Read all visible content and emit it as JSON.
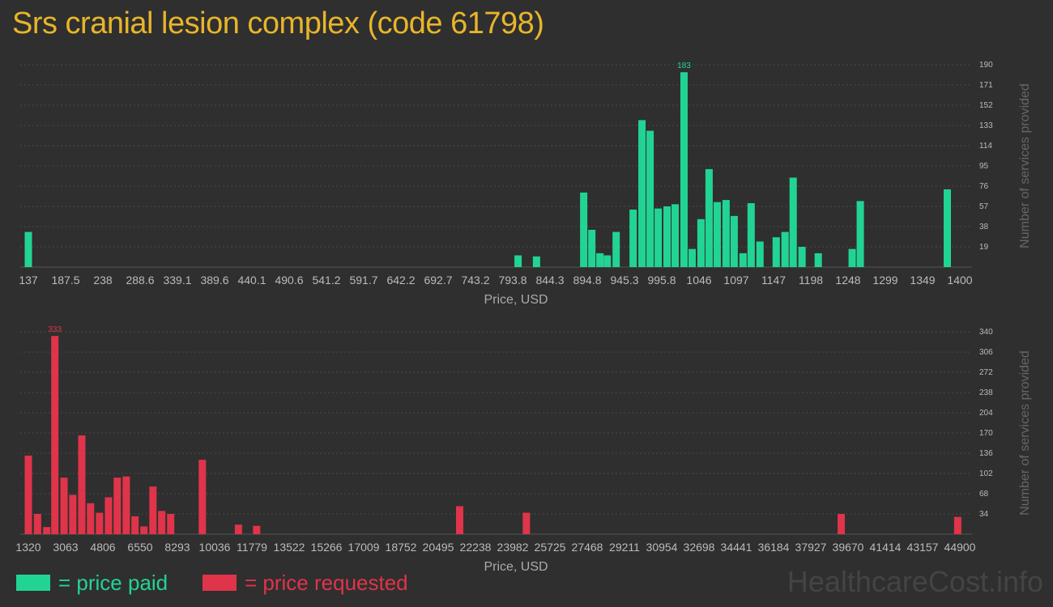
{
  "title": "Srs cranial lesion complex (code 61798)",
  "colors": {
    "paid": "#22d494",
    "requested": "#e0344a",
    "title": "#e8b52a",
    "axis_text": "#bbbbbb",
    "grid": "#4a4a4a"
  },
  "legend": {
    "paid": "= price paid",
    "requested": "= price requested"
  },
  "watermark": "HealthcareCost.info",
  "chart_data": [
    {
      "type": "bar",
      "series_key": "paid",
      "xlabel": "Price, USD",
      "ylabel": "Number of services provided",
      "x_ticks": [
        "137",
        "187.5",
        "238",
        "288.6",
        "339.1",
        "389.6",
        "440.1",
        "490.6",
        "541.2",
        "591.7",
        "642.2",
        "692.7",
        "743.2",
        "793.8",
        "844.3",
        "894.8",
        "945.3",
        "995.8",
        "1046",
        "1097",
        "1147",
        "1198",
        "1248",
        "1299",
        "1349",
        "1400"
      ],
      "xlim": [
        137,
        1400
      ],
      "y_ticks": [
        "19",
        "38",
        "57",
        "76",
        "95",
        "114",
        "133",
        "152",
        "171",
        "190"
      ],
      "ylim": [
        0,
        190
      ],
      "max_label": "183",
      "max_label_x": 1046,
      "bars": [
        {
          "x": 137,
          "y": 33
        },
        {
          "x": 801,
          "y": 11
        },
        {
          "x": 826,
          "y": 10
        },
        {
          "x": 890,
          "y": 70
        },
        {
          "x": 901,
          "y": 35
        },
        {
          "x": 912,
          "y": 13
        },
        {
          "x": 922,
          "y": 11
        },
        {
          "x": 934,
          "y": 33
        },
        {
          "x": 957,
          "y": 54
        },
        {
          "x": 969,
          "y": 138
        },
        {
          "x": 980,
          "y": 128
        },
        {
          "x": 991,
          "y": 55
        },
        {
          "x": 1003,
          "y": 57
        },
        {
          "x": 1014,
          "y": 59
        },
        {
          "x": 1026,
          "y": 183
        },
        {
          "x": 1037,
          "y": 17
        },
        {
          "x": 1049,
          "y": 45
        },
        {
          "x": 1060,
          "y": 92
        },
        {
          "x": 1071,
          "y": 61
        },
        {
          "x": 1083,
          "y": 63
        },
        {
          "x": 1094,
          "y": 48
        },
        {
          "x": 1106,
          "y": 13
        },
        {
          "x": 1117,
          "y": 60
        },
        {
          "x": 1129,
          "y": 24
        },
        {
          "x": 1151,
          "y": 28
        },
        {
          "x": 1163,
          "y": 33
        },
        {
          "x": 1174,
          "y": 84
        },
        {
          "x": 1186,
          "y": 19
        },
        {
          "x": 1208,
          "y": 13
        },
        {
          "x": 1254,
          "y": 17
        },
        {
          "x": 1265,
          "y": 62
        },
        {
          "x": 1383,
          "y": 73
        }
      ]
    },
    {
      "type": "bar",
      "series_key": "requested",
      "xlabel": "Price, USD",
      "ylabel": "Number of services provided",
      "x_ticks": [
        "1320",
        "3063",
        "4806",
        "6550",
        "8293",
        "10036",
        "11779",
        "13522",
        "15266",
        "17009",
        "18752",
        "20495",
        "22238",
        "23982",
        "25725",
        "27468",
        "29211",
        "30954",
        "32698",
        "34441",
        "36184",
        "37927",
        "39670",
        "41414",
        "43157",
        "44900"
      ],
      "xlim": [
        1320,
        44900
      ],
      "y_ticks": [
        "34",
        "68",
        "102",
        "136",
        "170",
        "204",
        "238",
        "272",
        "306",
        "340"
      ],
      "ylim": [
        0,
        340
      ],
      "max_label": "333",
      "max_label_x": 2700,
      "bars": [
        {
          "x": 1320,
          "y": 132
        },
        {
          "x": 1750,
          "y": 34
        },
        {
          "x": 2180,
          "y": 12
        },
        {
          "x": 2560,
          "y": 333
        },
        {
          "x": 2990,
          "y": 95
        },
        {
          "x": 3400,
          "y": 66
        },
        {
          "x": 3820,
          "y": 166
        },
        {
          "x": 4230,
          "y": 52
        },
        {
          "x": 4650,
          "y": 36
        },
        {
          "x": 5070,
          "y": 62
        },
        {
          "x": 5480,
          "y": 95
        },
        {
          "x": 5900,
          "y": 97
        },
        {
          "x": 6310,
          "y": 30
        },
        {
          "x": 6730,
          "y": 13
        },
        {
          "x": 7150,
          "y": 80
        },
        {
          "x": 7560,
          "y": 39
        },
        {
          "x": 7980,
          "y": 34
        },
        {
          "x": 9460,
          "y": 125
        },
        {
          "x": 11150,
          "y": 16
        },
        {
          "x": 12000,
          "y": 14
        },
        {
          "x": 21500,
          "y": 47
        },
        {
          "x": 24620,
          "y": 36
        },
        {
          "x": 39350,
          "y": 34
        },
        {
          "x": 44800,
          "y": 29
        }
      ]
    }
  ]
}
